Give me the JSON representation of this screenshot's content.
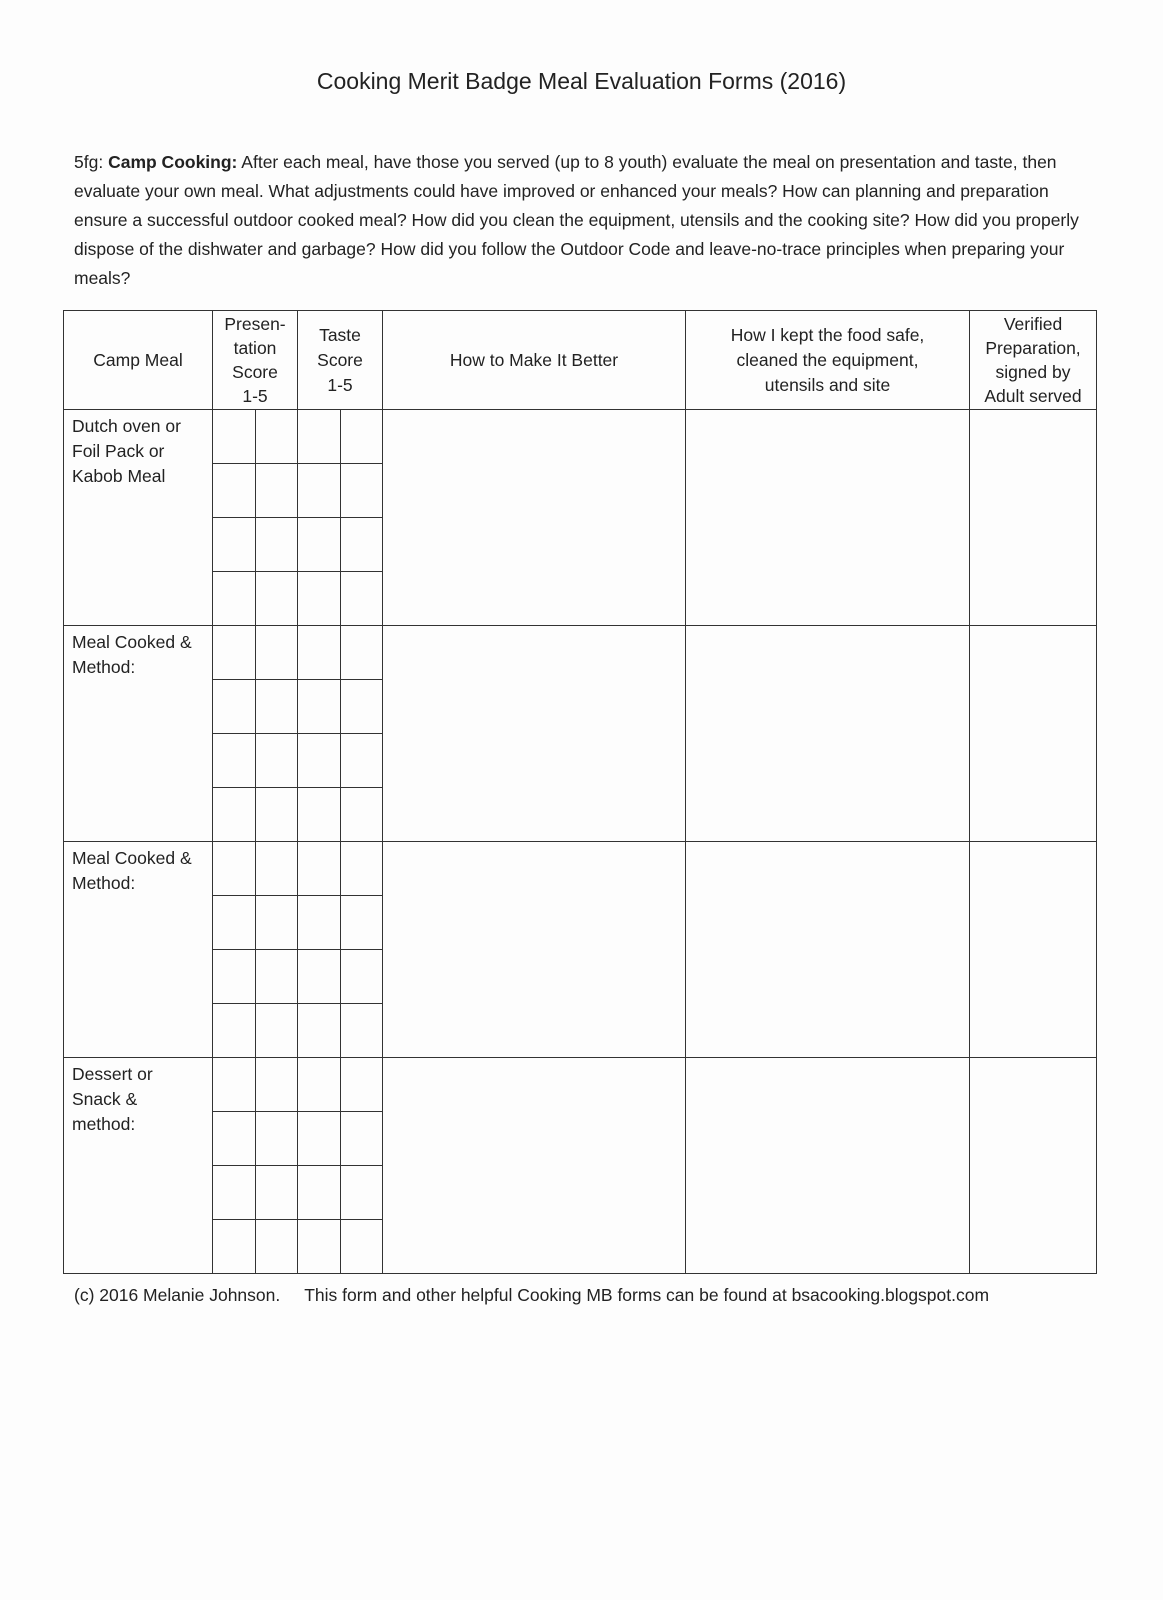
{
  "title": "Cooking Merit Badge Meal Evaluation Forms (2016)",
  "intro": {
    "code": "5fg:",
    "heading": "Camp Cooking:",
    "text": "After each meal, have those you served (up to 8 youth) evaluate the meal on presentation and taste, then evaluate your own meal. What adjustments could have improved or enhanced your meals? How can planning and preparation ensure a successful outdoor cooked meal? How did you clean the equipment, utensils and the cooking site? How did you properly dispose of the dishwater and garbage? How did you follow the Outdoor Code and leave-no-trace principles when preparing your meals?"
  },
  "table": {
    "headers": [
      "Camp Meal",
      "Presen-\ntation\nScore\n1-5",
      "Taste\nScore\n1-5",
      "How to Make It Better",
      "How I kept the food safe,\ncleaned the equipment,\nutensils and site",
      "Verified\nPreparation,\nsigned by\nAdult served"
    ],
    "meals": [
      "Dutch oven or\nFoil Pack or\nKabob Meal",
      "Meal Cooked &\nMethod:",
      "Meal Cooked &\nMethod:",
      "Dessert or\nSnack &\nmethod:"
    ]
  },
  "footer": {
    "copyright": "(c) 2016 Melanie Johnson.",
    "note": "This form and other helpful Cooking MB forms can be found at bsacooking.blogspot.com"
  }
}
